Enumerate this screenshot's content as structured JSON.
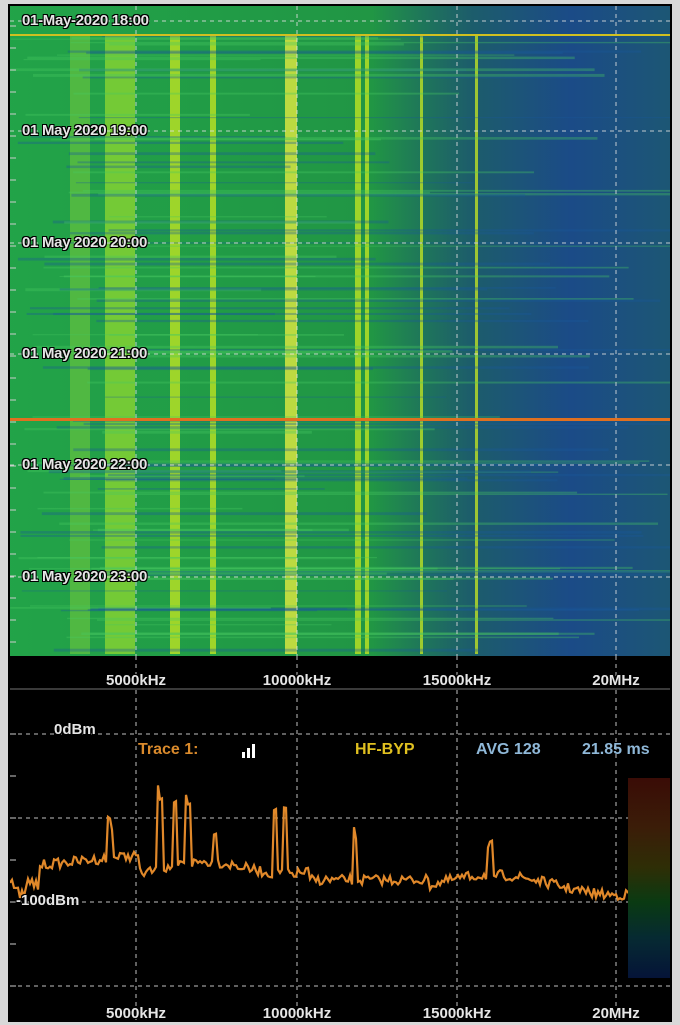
{
  "waterfall": {
    "time_labels": [
      "01-May-2020 18:00",
      "01 May 2020 19:00",
      "01 May 2020 20:00",
      "01 May 2020 21:00",
      "01 May 2020 22:00",
      "01 May 2020 23:00"
    ],
    "freq_labels": [
      "5000kHz",
      "10000kHz",
      "15000kHz",
      "20MHz"
    ],
    "colors": {
      "background": "#1f7a3c",
      "low": "#1a3f9a",
      "mid": "#22a84a",
      "high": "#c8e820",
      "peak": "#f0f040",
      "cursor": "#e07020"
    }
  },
  "spectrum": {
    "ref_levels": [
      "0dBm",
      "-100dBm"
    ],
    "trace_label": "Trace 1:",
    "trace_icon": "signal-bars-icon",
    "input_label": "HF-BYP",
    "avg_label": "AVG 128",
    "sweep_label": "21.85 ms",
    "freq_labels": [
      "5000kHz",
      "10000kHz",
      "15000kHz",
      "20MHz"
    ],
    "colors": {
      "trace": "#e0882a",
      "grid": "#bfbfbf"
    }
  }
}
